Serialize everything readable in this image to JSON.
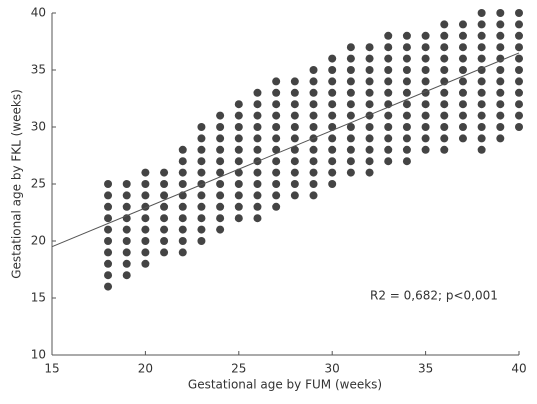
{
  "chart_data": {
    "type": "scatter",
    "x_label": "Gestational age by FUM (weeks)",
    "y_label": "Gestational age by FKL (weeks)",
    "annotation": "R2 = 0,682; p<0,001",
    "color": "#444444",
    "xlim": [
      15,
      40
    ],
    "xticks": [
      15,
      20,
      25,
      30,
      35,
      40
    ],
    "ylim": [
      10,
      40
    ],
    "yticks": [
      10,
      15,
      20,
      25,
      30,
      35,
      40
    ],
    "trendline": {
      "x": [
        15,
        40
      ],
      "y": [
        19.5,
        36.5
      ]
    },
    "x": [
      18,
      18,
      18,
      18,
      18,
      18,
      18,
      18,
      18,
      18,
      19,
      19,
      19,
      19,
      19,
      19,
      19,
      19,
      19,
      20,
      20,
      20,
      20,
      20,
      20,
      20,
      20,
      20,
      21,
      21,
      21,
      21,
      21,
      21,
      21,
      21,
      22,
      22,
      22,
      22,
      22,
      22,
      22,
      22,
      22,
      22,
      23,
      23,
      23,
      23,
      23,
      23,
      23,
      23,
      23,
      23,
      23,
      24,
      24,
      24,
      24,
      24,
      24,
      24,
      24,
      24,
      24,
      24,
      25,
      25,
      25,
      25,
      25,
      25,
      25,
      25,
      25,
      25,
      25,
      26,
      26,
      26,
      26,
      26,
      26,
      26,
      26,
      26,
      26,
      26,
      26,
      27,
      27,
      27,
      27,
      27,
      27,
      27,
      27,
      27,
      27,
      27,
      27,
      28,
      28,
      28,
      28,
      28,
      28,
      28,
      28,
      28,
      28,
      28,
      29,
      29,
      29,
      29,
      29,
      29,
      29,
      29,
      29,
      29,
      29,
      29,
      30,
      30,
      30,
      30,
      30,
      30,
      30,
      30,
      30,
      30,
      30,
      30,
      31,
      31,
      31,
      31,
      31,
      31,
      31,
      31,
      31,
      31,
      31,
      31,
      32,
      32,
      32,
      32,
      32,
      32,
      32,
      32,
      32,
      32,
      32,
      32,
      33,
      33,
      33,
      33,
      33,
      33,
      33,
      33,
      33,
      33,
      33,
      33,
      34,
      34,
      34,
      34,
      34,
      34,
      34,
      34,
      34,
      34,
      34,
      34,
      35,
      35,
      35,
      35,
      35,
      35,
      35,
      35,
      35,
      35,
      35,
      36,
      36,
      36,
      36,
      36,
      36,
      36,
      36,
      36,
      36,
      36,
      36,
      37,
      37,
      37,
      37,
      37,
      37,
      37,
      37,
      37,
      37,
      37,
      38,
      38,
      38,
      38,
      38,
      38,
      38,
      38,
      38,
      38,
      38,
      38,
      38,
      39,
      39,
      39,
      39,
      39,
      39,
      39,
      39,
      39,
      39,
      39,
      39,
      40,
      40,
      40,
      40,
      40,
      40,
      40,
      40,
      40,
      40,
      40
    ],
    "values": [
      16,
      17,
      18,
      19,
      20,
      21,
      22,
      23,
      24,
      25,
      17,
      18,
      19,
      20,
      21,
      22,
      23,
      24,
      25,
      18,
      19,
      20,
      21,
      22,
      23,
      24,
      25,
      26,
      19,
      20,
      21,
      22,
      23,
      24,
      25,
      26,
      19,
      20,
      21,
      22,
      23,
      24,
      25,
      26,
      27,
      28,
      20,
      21,
      22,
      23,
      24,
      25,
      26,
      27,
      28,
      29,
      30,
      21,
      22,
      23,
      24,
      25,
      26,
      27,
      28,
      29,
      30,
      31,
      22,
      23,
      24,
      25,
      26,
      27,
      28,
      29,
      30,
      31,
      32,
      22,
      23,
      24,
      25,
      26,
      27,
      28,
      29,
      30,
      31,
      32,
      33,
      23,
      24,
      25,
      26,
      27,
      28,
      29,
      30,
      31,
      32,
      33,
      34,
      24,
      25,
      26,
      27,
      28,
      29,
      30,
      31,
      32,
      33,
      34,
      24,
      25,
      26,
      27,
      28,
      29,
      30,
      31,
      32,
      33,
      34,
      35,
      25,
      26,
      27,
      28,
      29,
      30,
      31,
      32,
      33,
      34,
      35,
      36,
      26,
      27,
      28,
      29,
      30,
      31,
      32,
      33,
      34,
      35,
      36,
      37,
      26,
      27,
      28,
      29,
      30,
      31,
      32,
      33,
      34,
      35,
      36,
      37,
      27,
      28,
      29,
      30,
      31,
      32,
      33,
      34,
      35,
      36,
      37,
      38,
      27,
      28,
      29,
      30,
      31,
      32,
      33,
      34,
      35,
      36,
      37,
      38,
      28,
      29,
      30,
      31,
      32,
      33,
      34,
      35,
      36,
      37,
      38,
      28,
      29,
      30,
      31,
      32,
      33,
      34,
      35,
      36,
      37,
      38,
      39,
      29,
      30,
      31,
      32,
      33,
      34,
      35,
      36,
      37,
      38,
      39,
      28,
      29,
      30,
      31,
      32,
      33,
      34,
      35,
      36,
      37,
      38,
      39,
      40,
      29,
      30,
      31,
      32,
      33,
      34,
      35,
      36,
      37,
      38,
      39,
      40,
      30,
      31,
      32,
      33,
      34,
      35,
      36,
      37,
      38,
      39,
      40
    ]
  }
}
